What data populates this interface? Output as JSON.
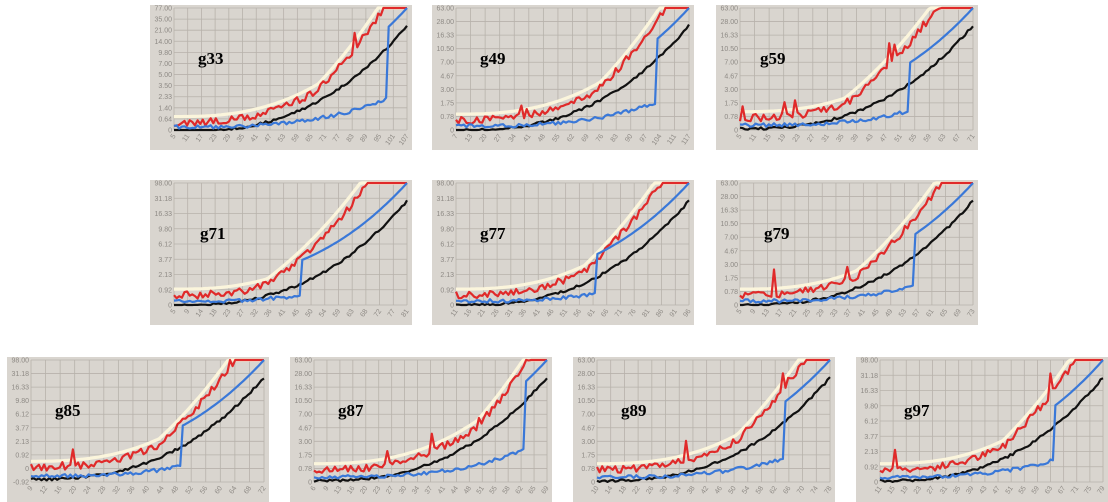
{
  "colors": {
    "panel_bg": "#d9d5cf",
    "grid": "#b7b2ab",
    "tick": "#8e8a85",
    "red": "#e02a2a",
    "black": "#111111",
    "blue": "#3a78d8",
    "cream": "#fbf5dc"
  },
  "chart_data": [
    {
      "id": "g33",
      "type": "line",
      "title": "g33",
      "yticks": [
        "0",
        "0.64",
        "1.40",
        "2.33",
        "3.50",
        "5.00",
        "7.00",
        "9.80",
        "14.00",
        "21.00",
        "35.00",
        "77.00"
      ],
      "xticks": [
        "5",
        "11",
        "17",
        "23",
        "29",
        "35",
        "41",
        "47",
        "53",
        "59",
        "65",
        "71",
        "77",
        "83",
        "89",
        "95",
        "101",
        "107"
      ]
    },
    {
      "id": "g49",
      "type": "line",
      "title": "g49",
      "yticks": [
        "0",
        "0.78",
        "1.75",
        "3.00",
        "4.67",
        "7.00",
        "10.50",
        "16.33",
        "28.00",
        "63.00"
      ],
      "xticks": [
        "7",
        "13",
        "20",
        "27",
        "34",
        "41",
        "48",
        "55",
        "62",
        "69",
        "76",
        "83",
        "90",
        "97",
        "104",
        "111",
        "117"
      ]
    },
    {
      "id": "g59",
      "type": "line",
      "title": "g59",
      "yticks": [
        "0",
        "0.78",
        "1.75",
        "3.00",
        "4.67",
        "7.00",
        "10.50",
        "16.33",
        "28.00",
        "63.00"
      ],
      "xticks": [
        "5",
        "11",
        "15",
        "19",
        "23",
        "27",
        "31",
        "35",
        "39",
        "43",
        "47",
        "51",
        "55",
        "59",
        "63",
        "67",
        "71"
      ]
    },
    {
      "id": "g71",
      "type": "line",
      "title": "g71",
      "yticks": [
        "0",
        "0.92",
        "2.13",
        "3.77",
        "6.12",
        "9.80",
        "16.33",
        "31.18",
        "98.00"
      ],
      "xticks": [
        "5",
        "9",
        "14",
        "18",
        "23",
        "27",
        "32",
        "36",
        "41",
        "45",
        "50",
        "54",
        "59",
        "63",
        "68",
        "72",
        "77",
        "81"
      ]
    },
    {
      "id": "g77",
      "type": "line",
      "title": "g77",
      "yticks": [
        "0",
        "0.92",
        "2.13",
        "3.77",
        "6.12",
        "9.80",
        "16.33",
        "31.18",
        "98.00"
      ],
      "xticks": [
        "11",
        "16",
        "21",
        "26",
        "31",
        "36",
        "41",
        "46",
        "51",
        "56",
        "61",
        "66",
        "71",
        "76",
        "81",
        "86",
        "91",
        "96"
      ]
    },
    {
      "id": "g79",
      "type": "line",
      "title": "g79",
      "yticks": [
        "0",
        "0.78",
        "1.75",
        "3.00",
        "4.67",
        "7.00",
        "10.50",
        "16.33",
        "28.00",
        "63.00"
      ],
      "xticks": [
        "5",
        "9",
        "13",
        "17",
        "21",
        "25",
        "29",
        "33",
        "37",
        "41",
        "45",
        "49",
        "53",
        "57",
        "61",
        "65",
        "69",
        "73"
      ]
    },
    {
      "id": "g85",
      "type": "line",
      "title": "g85",
      "yticks": [
        "-0.92",
        "0",
        "0.92",
        "2.13",
        "3.77",
        "6.12",
        "9.80",
        "16.33",
        "31.18",
        "98.00"
      ],
      "xticks": [
        "9",
        "12",
        "16",
        "20",
        "24",
        "28",
        "32",
        "36",
        "40",
        "44",
        "48",
        "52",
        "56",
        "60",
        "64",
        "68",
        "72"
      ]
    },
    {
      "id": "g87",
      "type": "line",
      "title": "g87",
      "yticks": [
        "0",
        "0.78",
        "1.75",
        "3.00",
        "4.67",
        "7.00",
        "10.50",
        "16.33",
        "28.00",
        "63.00"
      ],
      "xticks": [
        "6",
        "9",
        "13",
        "16",
        "20",
        "23",
        "27",
        "30",
        "34",
        "37",
        "41",
        "44",
        "48",
        "51",
        "55",
        "58",
        "62",
        "65",
        "69"
      ]
    },
    {
      "id": "g89",
      "type": "line",
      "title": "g89",
      "yticks": [
        "0",
        "0.78",
        "1.75",
        "3.00",
        "4.67",
        "7.00",
        "10.50",
        "16.33",
        "28.00",
        "63.00"
      ],
      "xticks": [
        "10",
        "14",
        "18",
        "22",
        "26",
        "30",
        "34",
        "38",
        "42",
        "46",
        "50",
        "54",
        "58",
        "62",
        "66",
        "70",
        "74",
        "78"
      ]
    },
    {
      "id": "g97",
      "type": "line",
      "title": "g97",
      "yticks": [
        "0",
        "0.92",
        "2.13",
        "3.77",
        "6.12",
        "9.80",
        "16.33",
        "31.18",
        "98.00"
      ],
      "xticks": [
        "11",
        "15",
        "19",
        "23",
        "27",
        "31",
        "35",
        "39",
        "43",
        "47",
        "51",
        "55",
        "59",
        "63",
        "67",
        "71",
        "75",
        "79"
      ]
    }
  ]
}
